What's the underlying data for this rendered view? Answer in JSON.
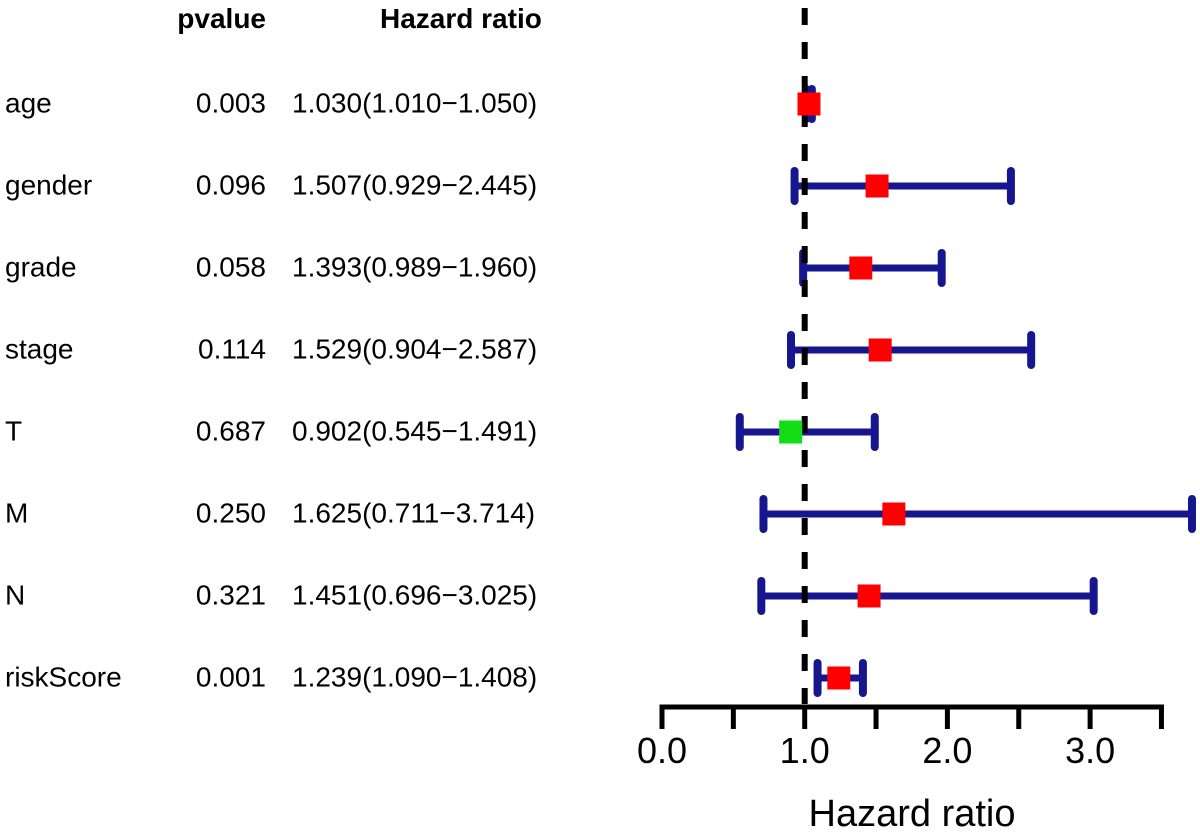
{
  "table": {
    "pvalue_header": "pvalue",
    "hazard_ratio_header": "Hazard ratio"
  },
  "chart_data": {
    "type": "forest",
    "title": "",
    "xlabel": "Hazard ratio",
    "xlim": [
      0,
      3.5
    ],
    "x_ticks": [
      0,
      0.5,
      1.0,
      1.5,
      2.0,
      2.5,
      3.0,
      3.5
    ],
    "x_labeled_ticks": [
      0,
      1,
      2,
      3
    ],
    "x_tick_labels": [
      "0.0",
      "1.0",
      "2.0",
      "3.0"
    ],
    "reference_line_x": 1.0,
    "grid": false,
    "rows": [
      {
        "label": "age",
        "pvalue": "0.003",
        "hr_ci_text": "1.030(1.010−1.050)",
        "hr": 1.03,
        "ci_low": 1.01,
        "ci_high": 1.05,
        "color": "red"
      },
      {
        "label": "gender",
        "pvalue": "0.096",
        "hr_ci_text": "1.507(0.929−2.445)",
        "hr": 1.507,
        "ci_low": 0.929,
        "ci_high": 2.445,
        "color": "red"
      },
      {
        "label": "grade",
        "pvalue": "0.058",
        "hr_ci_text": "1.393(0.989−1.960)",
        "hr": 1.393,
        "ci_low": 0.989,
        "ci_high": 1.96,
        "color": "red"
      },
      {
        "label": "stage",
        "pvalue": "0.114",
        "hr_ci_text": "1.529(0.904−2.587)",
        "hr": 1.529,
        "ci_low": 0.904,
        "ci_high": 2.587,
        "color": "red"
      },
      {
        "label": "T",
        "pvalue": "0.687",
        "hr_ci_text": "0.902(0.545−1.491)",
        "hr": 0.902,
        "ci_low": 0.545,
        "ci_high": 1.491,
        "color": "green"
      },
      {
        "label": "M",
        "pvalue": "0.250",
        "hr_ci_text": "1.625(0.711−3.714)",
        "hr": 1.625,
        "ci_low": 0.711,
        "ci_high": 3.714,
        "color": "red"
      },
      {
        "label": "N",
        "pvalue": "0.321",
        "hr_ci_text": "1.451(0.696−3.025)",
        "hr": 1.451,
        "ci_low": 0.696,
        "ci_high": 3.025,
        "color": "red"
      },
      {
        "label": "riskScore",
        "pvalue": "0.001",
        "hr_ci_text": "1.239(1.090−1.408)",
        "hr": 1.239,
        "ci_low": 1.09,
        "ci_high": 1.408,
        "color": "red"
      }
    ],
    "colors": {
      "risk_marker": "#FF0000",
      "protective_marker": "#12DD12",
      "error_bar": "#16168F",
      "reference_line": "#000000",
      "axis": "#000000",
      "text": "#000000"
    }
  }
}
